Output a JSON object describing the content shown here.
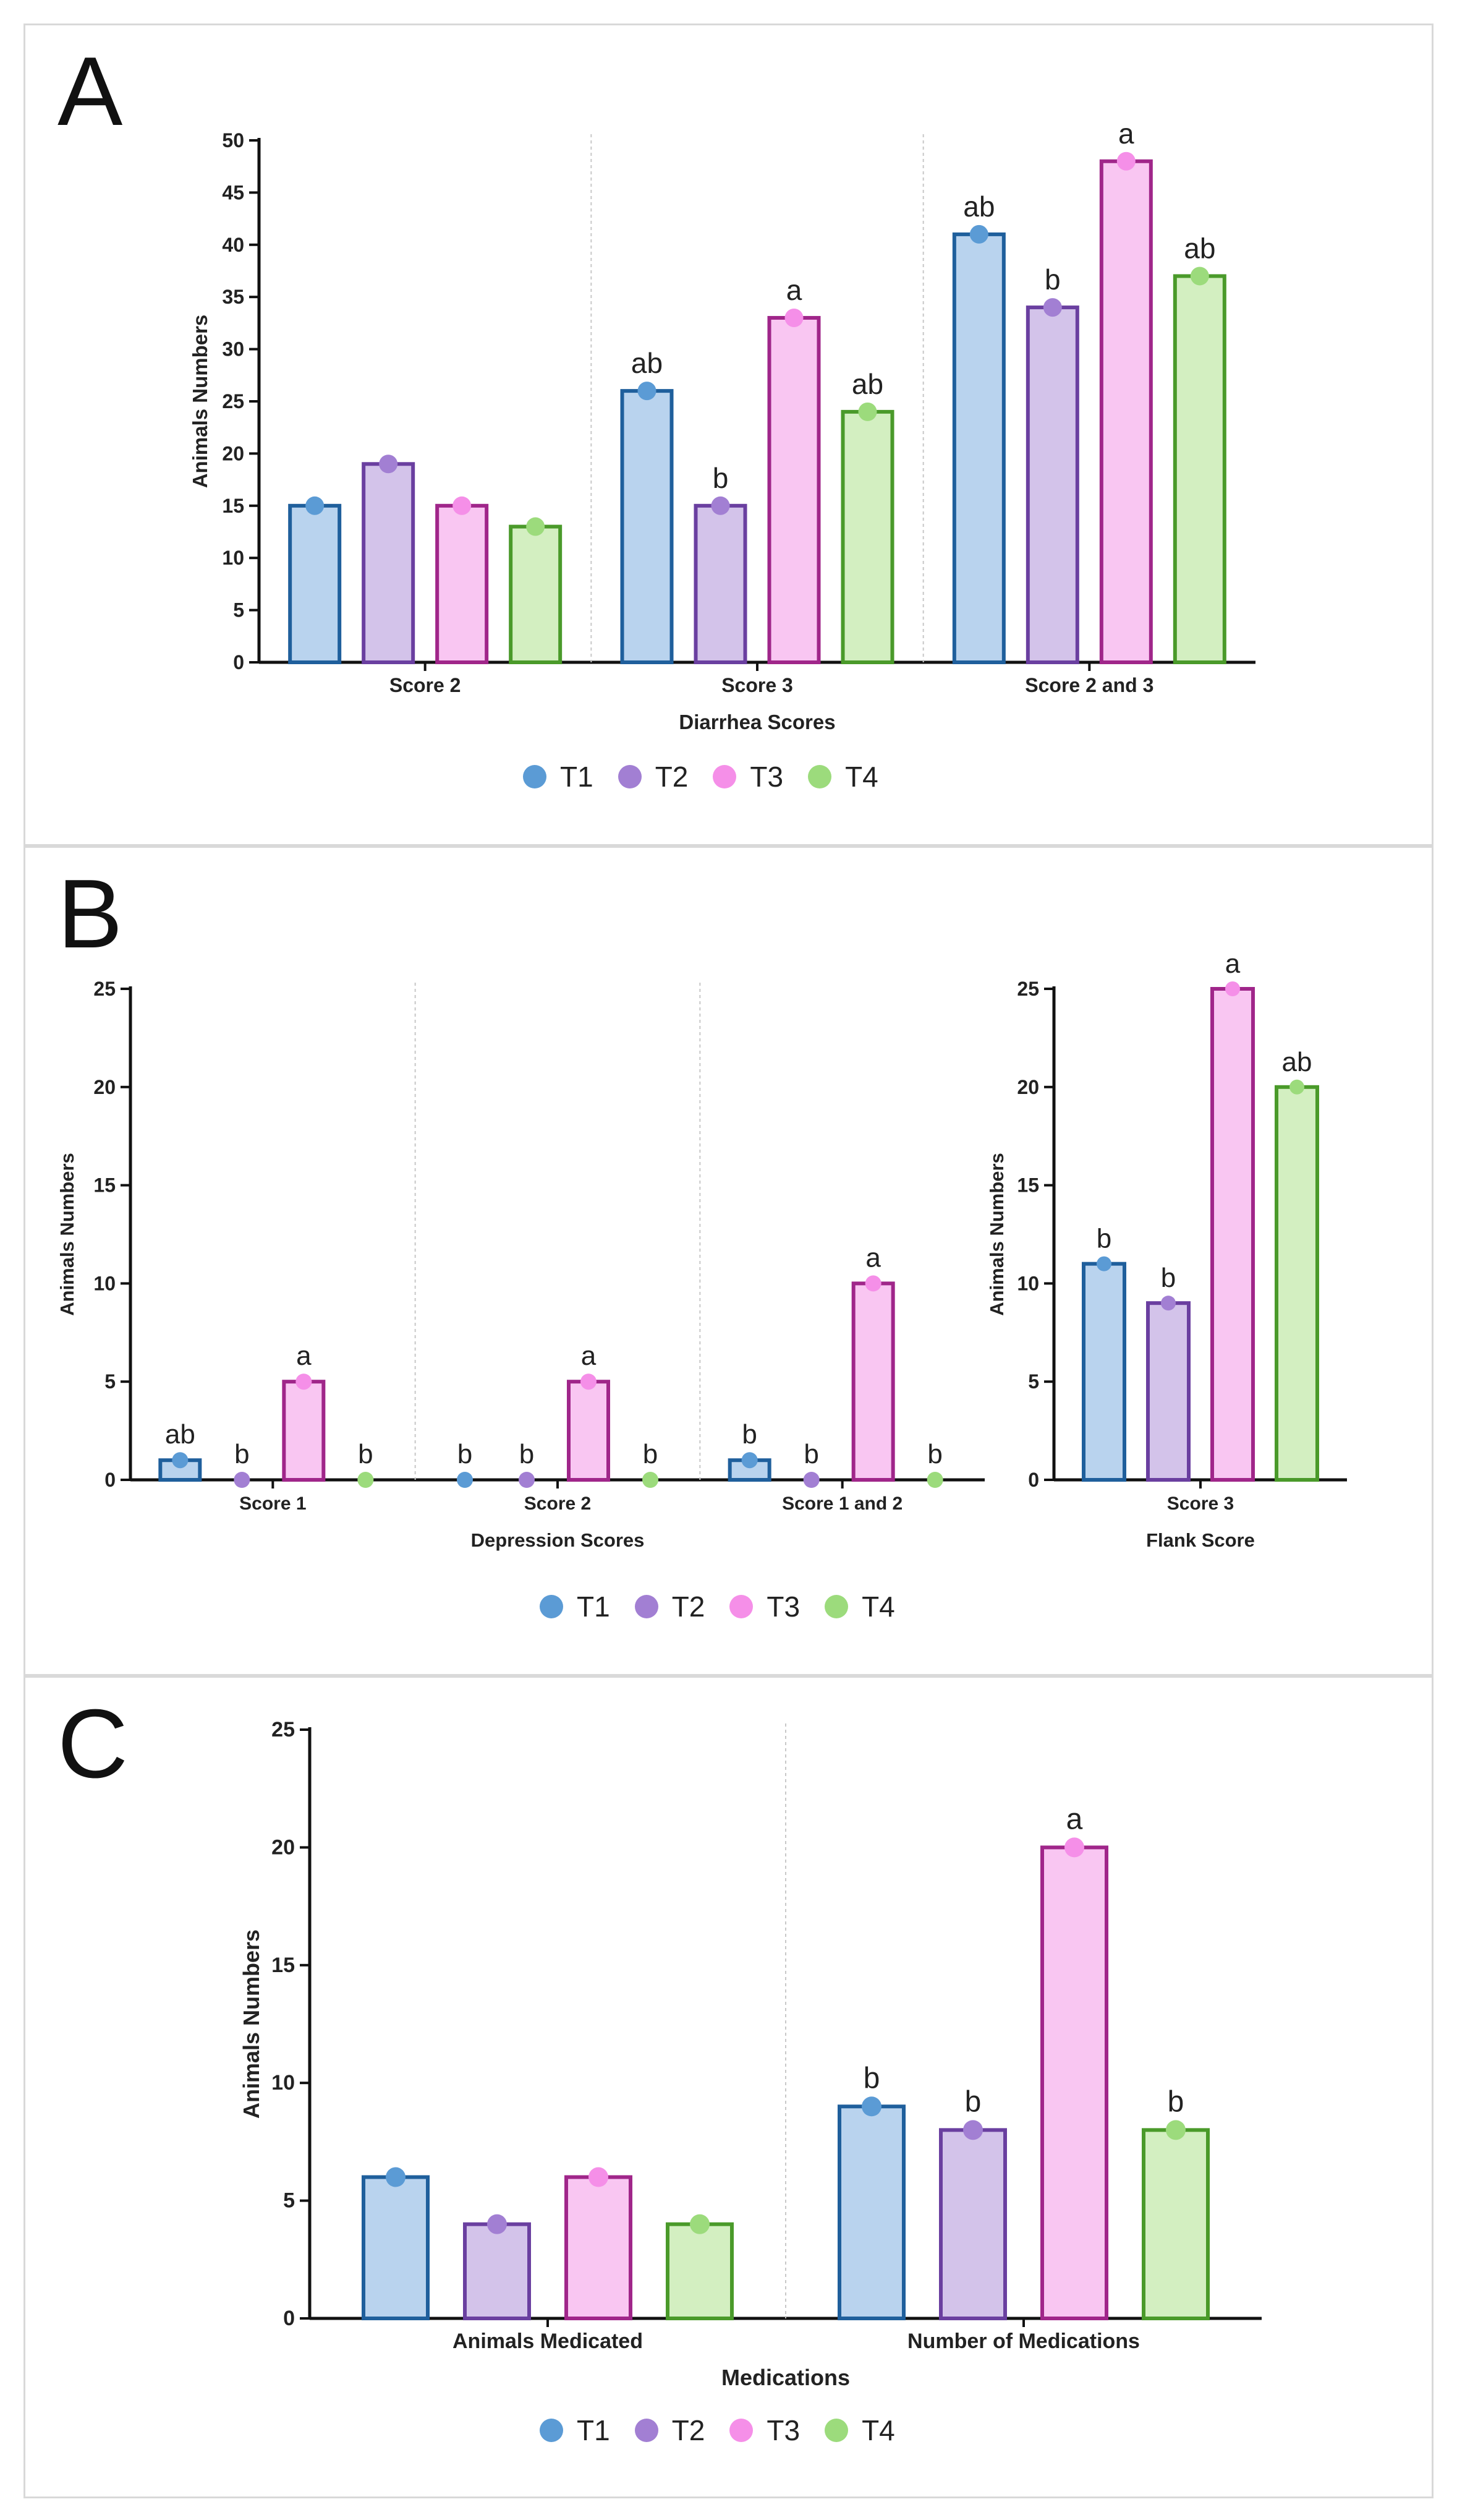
{
  "series_colors": {
    "T1": {
      "fill": "#b9d3ee",
      "stroke": "#1f5f9c",
      "dot": "#5b9bd5"
    },
    "T2": {
      "fill": "#d3c3ea",
      "stroke": "#6a3fa0",
      "dot": "#a27fd3"
    },
    "T3": {
      "fill": "#f9c6f2",
      "stroke": "#a0268a",
      "dot": "#f58fe8"
    },
    "T4": {
      "fill": "#d3efc1",
      "stroke": "#4a9a2a",
      "dot": "#9cdb7c"
    }
  },
  "legend": [
    "T1",
    "T2",
    "T3",
    "T4"
  ],
  "panels": {
    "A": {
      "letter": "A"
    },
    "B": {
      "letter": "B"
    },
    "C": {
      "letter": "C"
    }
  },
  "chart_data": [
    {
      "id": "A",
      "type": "bar",
      "title": "",
      "xlabel": "Diarrhea Scores",
      "ylabel": "Animals Numbers",
      "ylim": [
        0,
        50
      ],
      "yticks": [
        0,
        5,
        10,
        15,
        20,
        25,
        30,
        35,
        40,
        45,
        50
      ],
      "categories": [
        "Score 2",
        "Score  3",
        "Score 2 and 3"
      ],
      "series": [
        {
          "name": "T1",
          "values": [
            15,
            26,
            41
          ],
          "labels": [
            "",
            "ab",
            "ab"
          ]
        },
        {
          "name": "T2",
          "values": [
            19,
            15,
            34
          ],
          "labels": [
            "",
            "b",
            "b"
          ]
        },
        {
          "name": "T3",
          "values": [
            15,
            33,
            48
          ],
          "labels": [
            "",
            "a",
            "a"
          ]
        },
        {
          "name": "T4",
          "values": [
            13,
            24,
            37
          ],
          "labels": [
            "",
            "ab",
            "ab"
          ]
        }
      ]
    },
    {
      "id": "B1",
      "type": "bar",
      "title": "",
      "xlabel": "Depression Scores",
      "ylabel": "Animals Numbers",
      "ylim": [
        0,
        25
      ],
      "yticks": [
        0,
        5,
        10,
        15,
        20,
        25
      ],
      "categories": [
        "Score 1",
        "Score 2",
        "Score 1 and 2"
      ],
      "series": [
        {
          "name": "T1",
          "values": [
            1,
            0,
            1
          ],
          "labels": [
            "ab",
            "b",
            "b"
          ]
        },
        {
          "name": "T2",
          "values": [
            0,
            0,
            0
          ],
          "labels": [
            "b",
            "b",
            "b"
          ]
        },
        {
          "name": "T3",
          "values": [
            5,
            5,
            10
          ],
          "labels": [
            "a",
            "a",
            "a"
          ]
        },
        {
          "name": "T4",
          "values": [
            0,
            0,
            0
          ],
          "labels": [
            "b",
            "b",
            "b"
          ]
        }
      ]
    },
    {
      "id": "B2",
      "type": "bar",
      "title": "",
      "xlabel": "Flank Score",
      "ylabel": "Animals Numbers",
      "ylim": [
        0,
        25
      ],
      "yticks": [
        0,
        5,
        10,
        15,
        20,
        25
      ],
      "categories": [
        "Score 3"
      ],
      "series": [
        {
          "name": "T1",
          "values": [
            11
          ],
          "labels": [
            "b"
          ]
        },
        {
          "name": "T2",
          "values": [
            9
          ],
          "labels": [
            "b"
          ]
        },
        {
          "name": "T3",
          "values": [
            25
          ],
          "labels": [
            "a"
          ]
        },
        {
          "name": "T4",
          "values": [
            20
          ],
          "labels": [
            "ab"
          ]
        }
      ]
    },
    {
      "id": "C",
      "type": "bar",
      "title": "",
      "xlabel": "Medications",
      "ylabel": "Animals Numbers",
      "ylim": [
        0,
        25
      ],
      "yticks": [
        0,
        5,
        10,
        15,
        20,
        25
      ],
      "categories": [
        "Animals Medicated",
        "Number of Medications"
      ],
      "series": [
        {
          "name": "T1",
          "values": [
            6,
            9
          ],
          "labels": [
            "",
            "b"
          ]
        },
        {
          "name": "T2",
          "values": [
            4,
            8
          ],
          "labels": [
            "",
            "b"
          ]
        },
        {
          "name": "T3",
          "values": [
            6,
            20
          ],
          "labels": [
            "",
            "a"
          ]
        },
        {
          "name": "T4",
          "values": [
            4,
            8
          ],
          "labels": [
            "",
            "b"
          ]
        }
      ]
    }
  ]
}
